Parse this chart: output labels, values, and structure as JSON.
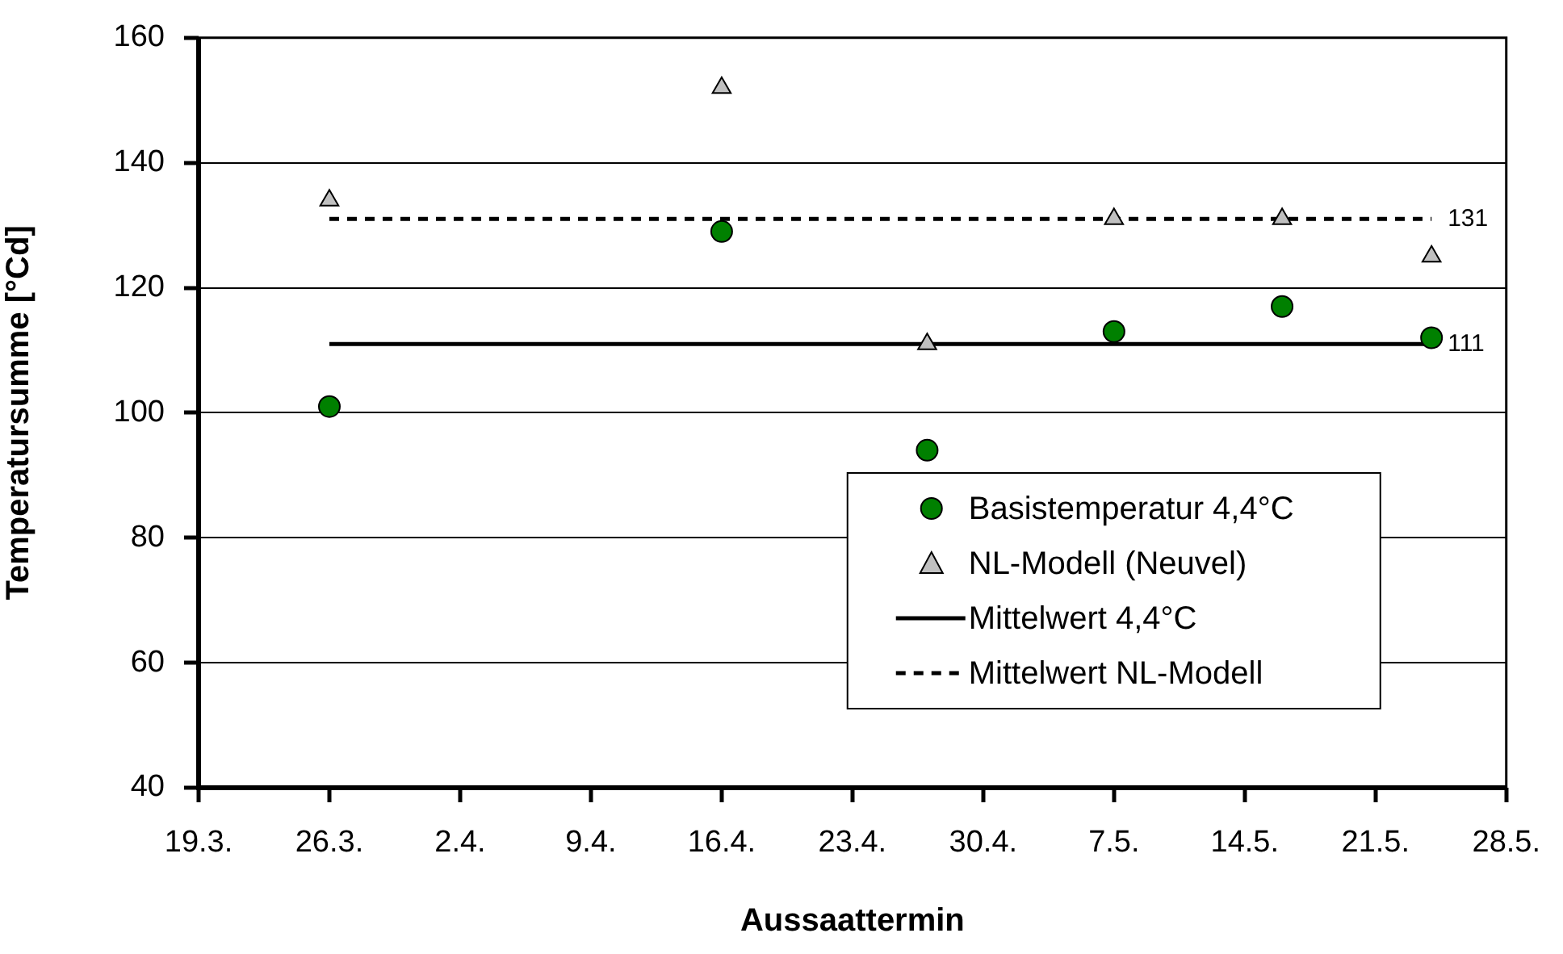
{
  "chart_data": {
    "type": "scatter",
    "xlabel": "Aussaattermin",
    "ylabel": "Temperatursumme [°Cd]",
    "xlim": [
      "--03-19",
      "--05-28"
    ],
    "xticks": [
      {
        "value": "--03-19",
        "label": "19.3."
      },
      {
        "value": "--03-26",
        "label": "26.3."
      },
      {
        "value": "--04-02",
        "label": "2.4."
      },
      {
        "value": "--04-09",
        "label": "9.4."
      },
      {
        "value": "--04-16",
        "label": "16.4."
      },
      {
        "value": "--04-23",
        "label": "23.4."
      },
      {
        "value": "--04-30",
        "label": "30.4."
      },
      {
        "value": "--05-07",
        "label": "7.5."
      },
      {
        "value": "--05-14",
        "label": "14.5."
      },
      {
        "value": "--05-21",
        "label": "21.5."
      },
      {
        "value": "--05-28",
        "label": "28.5."
      }
    ],
    "ylim": [
      40,
      160
    ],
    "yticks": [
      40,
      60,
      80,
      100,
      120,
      140,
      160
    ],
    "grid": "y",
    "legend": "bottom right",
    "series": [
      {
        "name": "Basistemperatur 4,4°C",
        "marker": "circle",
        "color": "#008000",
        "x": [
          "--03-26",
          "--04-16",
          "--04-27",
          "--05-07",
          "--05-16",
          "--05-24"
        ],
        "values": [
          101,
          129,
          94,
          113,
          117,
          112
        ]
      },
      {
        "name": "NL-Modell (Neuvel)",
        "marker": "triangle",
        "color": "#c0c0c0",
        "x": [
          "--03-26",
          "--04-16",
          "--04-27",
          "--05-07",
          "--05-16",
          "--05-24"
        ],
        "values": [
          134,
          152,
          111,
          131,
          131,
          125
        ]
      },
      {
        "name": "Mittelwert 4,4°C",
        "type": "line",
        "marker": "none",
        "line_style": "solid",
        "color": "#000000",
        "x": [
          "--03-26",
          "--05-24"
        ],
        "values": [
          111,
          111
        ],
        "value_labels": [
          null,
          "111"
        ]
      },
      {
        "name": "Mittelwert NL-Modell",
        "type": "line",
        "marker": "none",
        "line_style": "dashed",
        "color": "#000000",
        "x": [
          "--03-26",
          "--05-24"
        ],
        "values": [
          131,
          131
        ],
        "value_labels": [
          null,
          "131"
        ]
      }
    ]
  }
}
